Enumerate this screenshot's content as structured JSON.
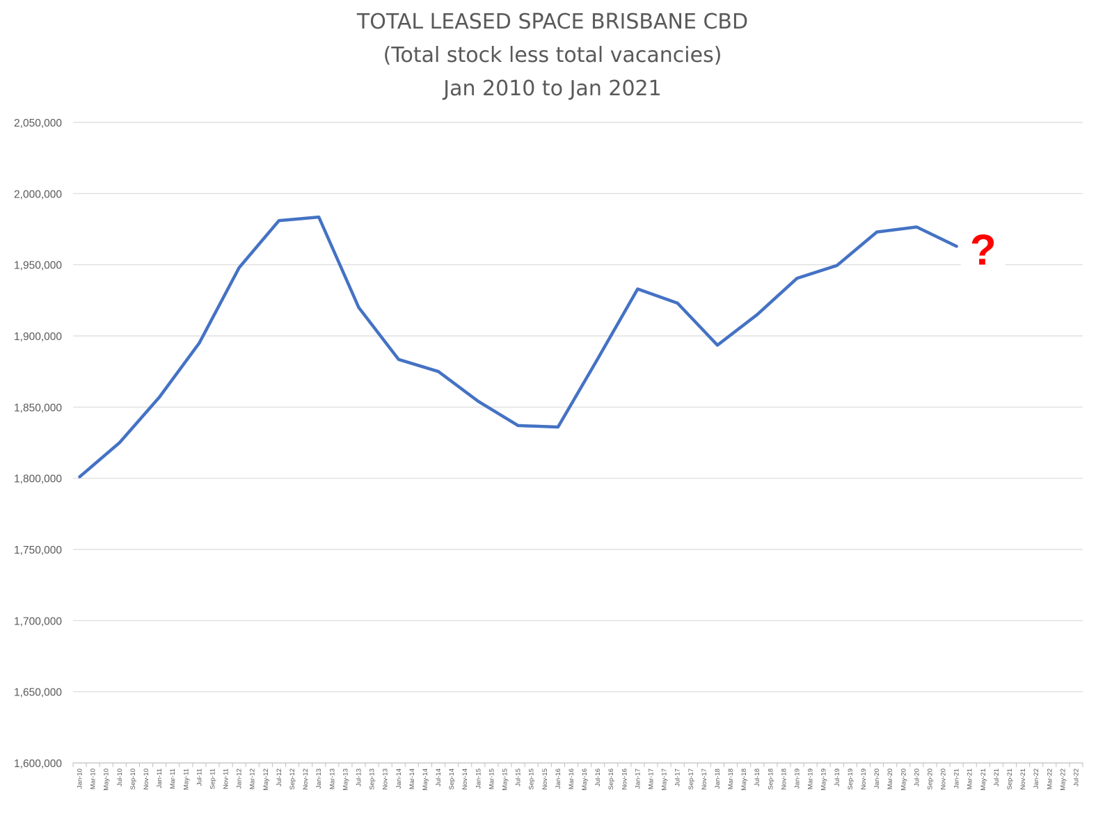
{
  "chart_data": {
    "type": "line",
    "title": [
      "TOTAL LEASED SPACE BRISBANE CBD",
      "(Total stock less total vacancies)",
      "Jan 2010 to Jan 2021"
    ],
    "xlabel": "",
    "ylabel": "",
    "ylim": [
      1600000,
      2050000
    ],
    "y_ticks": [
      1600000,
      1650000,
      1700000,
      1750000,
      1800000,
      1850000,
      1900000,
      1950000,
      2000000,
      2050000
    ],
    "y_tick_labels": [
      "1,600,000",
      "1,650,000",
      "1,700,000",
      "1,750,000",
      "1,800,000",
      "1,850,000",
      "1,900,000",
      "1,950,000",
      "2,000,000",
      "2,050,000"
    ],
    "categories": [
      "Jan-10",
      "Mar-10",
      "May-10",
      "Jul-10",
      "Sep-10",
      "Nov-10",
      "Jan-11",
      "Mar-11",
      "May-11",
      "Jul-11",
      "Sep-11",
      "Nov-11",
      "Jan-12",
      "Mar-12",
      "May-12",
      "Jul-12",
      "Sep-12",
      "Nov-12",
      "Jan-13",
      "Mar-13",
      "May-13",
      "Jul-13",
      "Sep-13",
      "Nov-13",
      "Jan-14",
      "Mar-14",
      "May-14",
      "Jul-14",
      "Sep-14",
      "Nov-14",
      "Jan-15",
      "Mar-15",
      "May-15",
      "Jul-15",
      "Sep-15",
      "Nov-15",
      "Jan-16",
      "Mar-16",
      "May-16",
      "Jul-16",
      "Sep-16",
      "Nov-16",
      "Jan-17",
      "Mar-17",
      "May-17",
      "Jul-17",
      "Sep-17",
      "Nov-17",
      "Jan-18",
      "Mar-18",
      "May-18",
      "Jul-18",
      "Sep-18",
      "Nov-18",
      "Jan-19",
      "Mar-19",
      "May-19",
      "Jul-19",
      "Sep-19",
      "Nov-19",
      "Jan-20",
      "Mar-20",
      "May-20",
      "Jul-20",
      "Sep-20",
      "Nov-20",
      "Jan-21",
      "Mar-21",
      "May-21",
      "Jul-21",
      "Sep-21",
      "Nov-21",
      "Jan-22",
      "Mar-22",
      "May-22",
      "Jul-22"
    ],
    "series": [
      {
        "points": [
          {
            "x": "Jan-10",
            "y": 1801000
          },
          {
            "x": "Jul-10",
            "y": 1825000
          },
          {
            "x": "Jan-11",
            "y": 1857000
          },
          {
            "x": "Jul-11",
            "y": 1895000
          },
          {
            "x": "Jan-12",
            "y": 1948000
          },
          {
            "x": "Jul-12",
            "y": 1981000
          },
          {
            "x": "Jan-13",
            "y": 1983500
          },
          {
            "x": "Jul-13",
            "y": 1920000
          },
          {
            "x": "Jan-14",
            "y": 1883500
          },
          {
            "x": "Jul-14",
            "y": 1875000
          },
          {
            "x": "Jan-15",
            "y": 1854000
          },
          {
            "x": "Jul-15",
            "y": 1837000
          },
          {
            "x": "Jan-16",
            "y": 1836000
          },
          {
            "x": "Jul-16",
            "y": 1884000
          },
          {
            "x": "Jan-17",
            "y": 1933000
          },
          {
            "x": "Jul-17",
            "y": 1923000
          },
          {
            "x": "Jan-18",
            "y": 1893500
          },
          {
            "x": "Jul-18",
            "y": 1915000
          },
          {
            "x": "Jan-19",
            "y": 1940500
          },
          {
            "x": "Jul-19",
            "y": 1949500
          },
          {
            "x": "Jan-20",
            "y": 1973000
          },
          {
            "x": "Jul-20",
            "y": 1976500
          },
          {
            "x": "Jan-21",
            "y": 1963000
          }
        ]
      }
    ],
    "line_color": "#4472C4",
    "gridline_color": "#D9D9D9",
    "grid": true,
    "legend": "none",
    "annotations": [
      {
        "text": "?",
        "x": "May-21",
        "y": 1955000,
        "color": "#FF0000"
      }
    ]
  }
}
